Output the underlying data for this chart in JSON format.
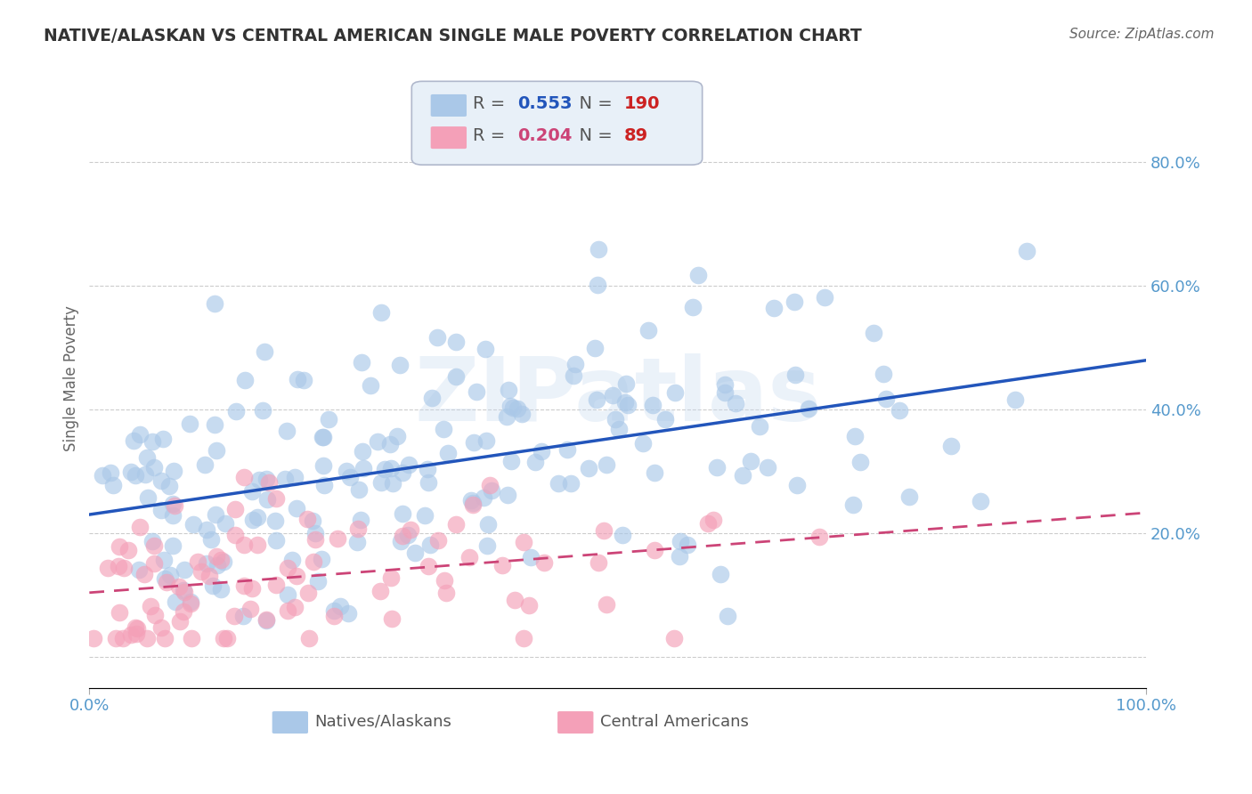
{
  "title": "NATIVE/ALASKAN VS CENTRAL AMERICAN SINGLE MALE POVERTY CORRELATION CHART",
  "source": "Source: ZipAtlas.com",
  "ylabel": "Single Male Poverty",
  "blue_R": 0.553,
  "blue_N": 190,
  "pink_R": 0.204,
  "pink_N": 89,
  "blue_color": "#aac8e8",
  "blue_line_color": "#2255bb",
  "pink_color": "#f4a0b8",
  "pink_line_color": "#cc4477",
  "watermark": "ZIPatlas",
  "background_color": "#ffffff",
  "grid_color": "#cccccc",
  "axis_color": "#aaaaaa",
  "title_color": "#333333",
  "label_color": "#666666",
  "tick_label_color": "#5599cc",
  "legend_box_color": "#e8f0f8",
  "xlim": [
    0.0,
    1.0
  ],
  "ylim": [
    -0.05,
    0.95
  ],
  "yticks": [
    0.0,
    0.2,
    0.4,
    0.6,
    0.8
  ],
  "ytick_labels": [
    "",
    "20.0%",
    "40.0%",
    "60.0%",
    "80.0%"
  ],
  "blue_intercept": 0.22,
  "blue_slope": 0.26,
  "pink_intercept": 0.1,
  "pink_slope": 0.16
}
